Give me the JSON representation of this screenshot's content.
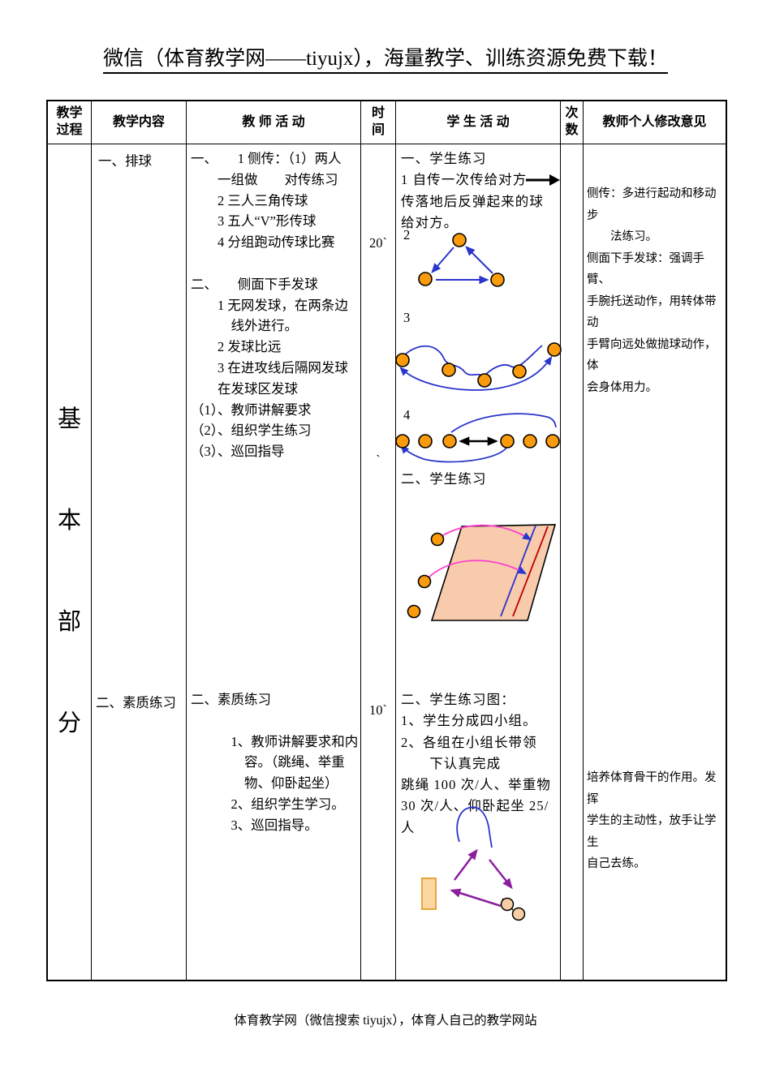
{
  "header": {
    "title": "微信（体育教学网——tiyujx），海量教学、训练资源免费下载！"
  },
  "footer": {
    "text": "体育教学网（微信搜索 tiyujx），体育人自己的教学网站"
  },
  "table": {
    "columns": {
      "process": "教学\n过程",
      "content": "教学内容",
      "teacher": "教 师 活 动",
      "time": "时\n间",
      "student": "学 生 活 动",
      "count": "次\n数",
      "comments": "教师个人修改意见"
    },
    "process": {
      "chars": [
        "基",
        "本",
        "部",
        "分"
      ]
    },
    "content": {
      "item1": "一、排球",
      "item2": "二、素质练习"
    },
    "time": {
      "t1": "20`",
      "t2": "`",
      "t3": "10`"
    },
    "teacher": {
      "block1": [
        "一、　　1 侧传：（1）两人",
        "　　一组做　　对传练习",
        "　　2 三人三角传球",
        "　　3 五人“V”形传球",
        "　　4 分组跑动传球比赛",
        "",
        "二、　　侧面下手发球",
        "　　1 无网发球，在两条边",
        "　　　线外进行。",
        "　　2 发球比远",
        "　　3 在进攻线后隔网发球",
        "　　在发球区发球",
        "（1）、教师讲解要求",
        "（2）、组织学生练习",
        "（3）、巡回指导"
      ],
      "block2": [
        "二、素质练习",
        "",
        "　　　1、教师讲解要求和内",
        "　　　　容。（跳绳、举重",
        "　　　　物、仰卧起坐）",
        "　　　2、组织学生学习。",
        "　　　3、巡回指导。"
      ]
    },
    "student": {
      "block1": [
        "一、学生练习",
        "1 自传一次传给对方",
        "传落地后反弹起来的球",
        "给对方。"
      ],
      "label2": "2",
      "label3": "3",
      "label4": "4",
      "subtitle": "二、学生练习",
      "block2": [
        "二、学生练习图：",
        "1、学生分成四小组。",
        "2、各组在小组长带领",
        "　　下认真完成",
        "跳绳 100 次/人、举重物",
        "30 次/人、仰卧起坐 25/",
        "人"
      ]
    },
    "comments": {
      "block1": [
        "侧传：多进行起动和移动步",
        "　　法练习。",
        "侧面下手发球：强调手臂、",
        "手腕托送动作，用转体带动",
        "手臂向远处做抛球动作，体",
        "会身体用力。"
      ],
      "block2": [
        "培养体育骨干的作用。发挥",
        "学生的主动性，放手让学生",
        "自己去练。"
      ]
    }
  },
  "colors": {
    "accent_blue": "#2A35CC",
    "ball_orange": "#F99B0C",
    "court_peach": "#F8CBAD",
    "court_red": "#C00000",
    "magenta": "#FF3FCF",
    "purple": "#8B1F9E",
    "equip_fill": "#FBD7A1",
    "equip_border": "#E8A33D",
    "dumbbell_fill": "#F6CDA4"
  }
}
